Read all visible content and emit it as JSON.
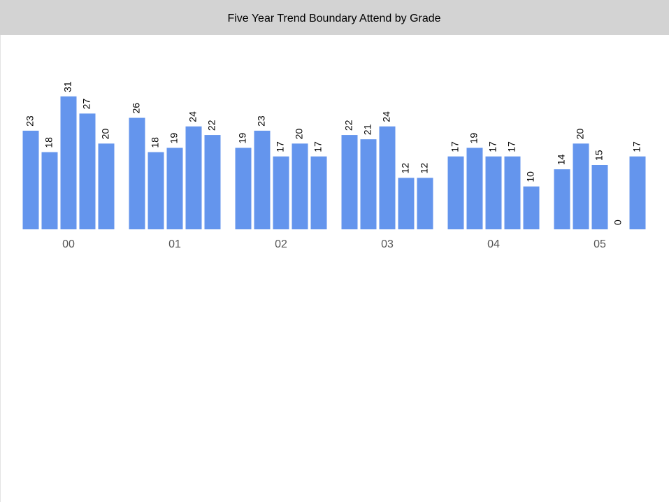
{
  "chart_data": {
    "type": "bar",
    "title": "Five Year Trend Boundary Attend by Grade",
    "categories": [
      "00",
      "01",
      "02",
      "03",
      "04",
      "05"
    ],
    "series": [
      {
        "color": "#6495ed",
        "values": [
          23,
          26,
          19,
          22,
          17,
          14
        ]
      },
      {
        "color": "#6495ed",
        "values": [
          18,
          18,
          23,
          21,
          19,
          20
        ]
      },
      {
        "color": "#6495ed",
        "values": [
          31,
          19,
          17,
          24,
          17,
          15
        ]
      },
      {
        "color": "#6495ed",
        "values": [
          27,
          24,
          20,
          12,
          17,
          0
        ]
      },
      {
        "color": "#6495ed",
        "values": [
          20,
          22,
          17,
          12,
          10,
          17
        ]
      }
    ],
    "ylim": [
      0,
      45
    ]
  }
}
